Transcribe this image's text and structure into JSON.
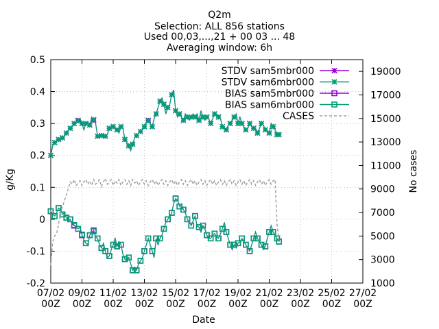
{
  "chart_data": {
    "type": "line",
    "title_lines": [
      "Q2m",
      "Selection: ALL    856 stations",
      "Used 00,03,...,21 + 00 03 ... 48",
      "Averaging window:  6h"
    ],
    "xlabel": "Date",
    "ylabel": "g/Kg",
    "y2label": "No cases",
    "ylim": [
      -0.2,
      0.5
    ],
    "y2lim": [
      1000,
      20000
    ],
    "xlim": [
      0,
      40
    ],
    "grid": true,
    "legend_position": "top-right",
    "x_ticks": [
      {
        "x": 0,
        "line1": "07/02",
        "line2": "00Z"
      },
      {
        "x": 4,
        "line1": "09/02",
        "line2": "00Z"
      },
      {
        "x": 8,
        "line1": "11/02",
        "line2": "00Z"
      },
      {
        "x": 12,
        "line1": "13/02",
        "line2": "00Z"
      },
      {
        "x": 16,
        "line1": "15/02",
        "line2": "00Z"
      },
      {
        "x": 20,
        "line1": "17/02",
        "line2": "00Z"
      },
      {
        "x": 24,
        "line1": "19/02",
        "line2": "00Z"
      },
      {
        "x": 28,
        "line1": "21/02",
        "line2": "00Z"
      },
      {
        "x": 32,
        "line1": "23/02",
        "line2": "00Z"
      },
      {
        "x": 36,
        "line1": "25/02",
        "line2": "00Z"
      },
      {
        "x": 40,
        "line1": "27/02",
        "line2": "00Z"
      }
    ],
    "y_ticks": [
      "-0.2",
      "-0.1",
      "0",
      "0.1",
      "0.2",
      "0.3",
      "0.4",
      "0.5"
    ],
    "y_tick_values": [
      -0.2,
      -0.1,
      0,
      0.1,
      0.2,
      0.3,
      0.4,
      0.5
    ],
    "y2_ticks": [
      "1000",
      "3000",
      "5000",
      "7000",
      "9000",
      "11000",
      "13000",
      "15000",
      "17000",
      "19000"
    ],
    "y2_tick_values": [
      1000,
      3000,
      5000,
      7000,
      9000,
      11000,
      13000,
      15000,
      17000,
      19000
    ],
    "x_step": 0.25,
    "series": [
      {
        "name": "STDV sam5mbr000",
        "color": "#9400d3",
        "marker": "star",
        "axis": "y",
        "values": [
          0.2,
          0.23,
          0.24,
          0.245,
          0.25,
          0.25,
          0.255,
          0.26,
          0.27,
          0.28,
          0.285,
          0.29,
          0.3,
          0.305,
          0.31,
          0.315,
          0.3,
          0.28,
          0.3,
          0.305,
          0.295,
          0.32,
          0.31,
          0.3,
          0.26,
          0.258,
          0.262,
          0.255,
          0.26,
          0.265,
          0.285,
          0.288,
          0.29,
          0.285,
          0.28,
          0.27,
          0.29,
          0.285,
          0.25,
          0.24,
          0.23,
          0.215,
          0.235,
          0.255,
          0.262,
          0.27,
          0.275,
          0.28,
          0.29,
          0.305,
          0.31,
          0.3,
          0.29,
          0.315,
          0.33,
          0.35,
          0.37,
          0.38,
          0.36,
          0.33,
          0.35,
          0.36,
          0.39,
          0.405,
          0.34,
          0.32,
          0.33,
          0.32,
          0.31,
          0.33,
          0.32,
          0.31,
          0.32,
          0.33,
          0.32,
          0.33,
          0.31,
          0.34,
          0.32,
          0.31,
          0.32,
          0.315,
          0.3,
          0.315,
          0.33,
          0.33,
          0.32,
          0.315,
          0.29,
          0.28,
          0.28,
          0.295,
          0.3,
          0.31,
          0.32,
          0.33,
          0.3,
          0.32,
          0.3,
          0.29,
          0.28,
          0.285,
          0.3,
          0.29,
          0.285,
          0.285,
          0.27,
          0.285,
          0.3,
          0.295,
          0.28,
          0.275,
          0.27,
          0.3,
          0.29,
          0.28,
          0.265,
          0.265
        ],
        "x_start": 0
      },
      {
        "name": "STDV sam6mbr000",
        "color": "#009e73",
        "marker": "star",
        "axis": "y",
        "values": [
          0.2,
          0.23,
          0.24,
          0.245,
          0.25,
          0.25,
          0.255,
          0.26,
          0.27,
          0.28,
          0.285,
          0.29,
          0.3,
          0.305,
          0.308,
          0.315,
          0.3,
          0.28,
          0.3,
          0.303,
          0.295,
          0.318,
          0.312,
          0.3,
          0.26,
          0.258,
          0.262,
          0.255,
          0.26,
          0.265,
          0.285,
          0.288,
          0.29,
          0.285,
          0.28,
          0.27,
          0.29,
          0.285,
          0.25,
          0.24,
          0.23,
          0.215,
          0.235,
          0.255,
          0.262,
          0.27,
          0.275,
          0.28,
          0.29,
          0.305,
          0.308,
          0.3,
          0.29,
          0.315,
          0.33,
          0.35,
          0.37,
          0.38,
          0.36,
          0.33,
          0.35,
          0.36,
          0.39,
          0.405,
          0.34,
          0.32,
          0.33,
          0.32,
          0.31,
          0.33,
          0.32,
          0.31,
          0.32,
          0.33,
          0.32,
          0.33,
          0.31,
          0.34,
          0.32,
          0.31,
          0.32,
          0.315,
          0.3,
          0.315,
          0.33,
          0.33,
          0.32,
          0.315,
          0.29,
          0.28,
          0.28,
          0.295,
          0.3,
          0.31,
          0.32,
          0.33,
          0.3,
          0.32,
          0.3,
          0.29,
          0.28,
          0.285,
          0.3,
          0.29,
          0.285,
          0.285,
          0.27,
          0.285,
          0.3,
          0.295,
          0.28,
          0.275,
          0.27,
          0.3,
          0.29,
          0.28,
          0.265,
          0.265
        ],
        "x_start": 0
      },
      {
        "name": "BIAS sam5mbr000",
        "color": "#9400d3",
        "marker": "square",
        "axis": "y",
        "values": [
          0.025,
          0.015,
          0.01,
          0.02,
          0.035,
          0.03,
          0.015,
          0.02,
          0.005,
          -0.005,
          0.0,
          -0.015,
          -0.02,
          -0.025,
          -0.03,
          -0.025,
          -0.05,
          -0.065,
          -0.075,
          -0.08,
          -0.05,
          -0.04,
          -0.035,
          -0.055,
          -0.06,
          -0.08,
          -0.09,
          -0.075,
          -0.1,
          -0.12,
          -0.115,
          -0.095,
          -0.08,
          -0.06,
          -0.085,
          -0.07,
          -0.08,
          -0.11,
          -0.125,
          -0.13,
          -0.12,
          -0.14,
          -0.16,
          -0.15,
          -0.16,
          -0.14,
          -0.13,
          -0.12,
          -0.1,
          -0.08,
          -0.06,
          -0.08,
          -0.1,
          -0.12,
          -0.06,
          -0.08,
          -0.06,
          -0.05,
          -0.03,
          -0.01,
          0.0,
          0.01,
          0.02,
          0.05,
          0.065,
          0.06,
          0.04,
          0.045,
          0.03,
          0.02,
          0.0,
          -0.01,
          -0.02,
          -0.005,
          0.01,
          -0.02,
          -0.025,
          -0.04,
          -0.02,
          -0.03,
          -0.05,
          -0.06,
          -0.06,
          -0.05,
          -0.045,
          -0.055,
          -0.06,
          -0.045,
          -0.03,
          -0.01,
          -0.04,
          -0.06,
          -0.08,
          -0.095,
          -0.08,
          -0.09,
          -0.075,
          -0.07,
          -0.06,
          -0.07,
          -0.08,
          -0.09,
          -0.1,
          -0.08,
          -0.06,
          -0.04,
          -0.06,
          -0.07,
          -0.08,
          -0.095,
          -0.085,
          -0.06,
          -0.04,
          -0.02,
          -0.04,
          -0.05,
          -0.06,
          -0.07
        ],
        "x_start": 0
      },
      {
        "name": "BIAS sam6mbr000",
        "color": "#009e73",
        "marker": "square",
        "axis": "y",
        "values": [
          0.025,
          0.015,
          0.01,
          0.02,
          0.035,
          0.03,
          0.015,
          0.02,
          0.005,
          -0.005,
          0.0,
          -0.012,
          -0.018,
          -0.025,
          -0.03,
          -0.025,
          -0.048,
          -0.065,
          -0.075,
          -0.08,
          -0.05,
          -0.04,
          -0.038,
          -0.055,
          -0.06,
          -0.08,
          -0.09,
          -0.075,
          -0.1,
          -0.12,
          -0.115,
          -0.095,
          -0.08,
          -0.06,
          -0.085,
          -0.07,
          -0.08,
          -0.11,
          -0.125,
          -0.13,
          -0.12,
          -0.14,
          -0.16,
          -0.15,
          -0.16,
          -0.14,
          -0.13,
          -0.12,
          -0.1,
          -0.08,
          -0.06,
          -0.08,
          -0.1,
          -0.12,
          -0.06,
          -0.08,
          -0.06,
          -0.05,
          -0.03,
          -0.01,
          0.0,
          0.01,
          0.02,
          0.05,
          0.065,
          0.06,
          0.04,
          0.045,
          0.03,
          0.02,
          0.0,
          -0.01,
          -0.02,
          -0.005,
          0.01,
          -0.02,
          -0.025,
          -0.04,
          -0.02,
          -0.03,
          -0.05,
          -0.06,
          -0.06,
          -0.05,
          -0.045,
          -0.055,
          -0.06,
          -0.045,
          -0.03,
          -0.01,
          -0.04,
          -0.06,
          -0.08,
          -0.095,
          -0.08,
          -0.09,
          -0.075,
          -0.07,
          -0.06,
          -0.07,
          -0.08,
          -0.09,
          -0.1,
          -0.08,
          -0.06,
          -0.04,
          -0.06,
          -0.07,
          -0.08,
          -0.095,
          -0.085,
          -0.06,
          -0.04,
          -0.02,
          -0.04,
          -0.05,
          -0.06,
          -0.07
        ],
        "x_start": 0
      },
      {
        "name": "CASES",
        "color": "#a0a0a0",
        "marker": "none",
        "dashed": true,
        "axis": "y2",
        "values": [
          2500,
          4500,
          5000,
          5200,
          6000,
          7000,
          7500,
          8000,
          8500,
          9000,
          9600,
          9400,
          9800,
          9300,
          9500,
          9700,
          9300,
          9600,
          9800,
          9400,
          9700,
          9300,
          9800,
          9400,
          9600,
          9800,
          9200,
          9600,
          9900,
          9400,
          9600,
          9800,
          9300,
          9700,
          9500,
          9800,
          9300,
          9600,
          9800,
          9400,
          9700,
          9300,
          9800,
          9500,
          9700,
          9300,
          9600,
          9800,
          9400,
          9700,
          9300,
          9600,
          9800,
          9400,
          9700,
          9300,
          9600,
          9800,
          9400,
          9700,
          9300,
          9600,
          9800,
          9400,
          9700,
          9300,
          9600,
          9800,
          9400,
          9700,
          9300,
          9600,
          9800,
          9400,
          9700,
          9300,
          9600,
          9800,
          9400,
          9700,
          9300,
          9600,
          9800,
          9400,
          9700,
          9300,
          9600,
          9800,
          9400,
          9700,
          9300,
          9600,
          9800,
          9400,
          9700,
          9300,
          9600,
          9800,
          9400,
          9700,
          9300,
          9600,
          9800,
          9400,
          9700,
          9300,
          9600,
          9800,
          9400,
          9700,
          9300,
          9600,
          9800,
          9400,
          9700,
          9800,
          6000,
          4500
        ],
        "x_start": 0
      }
    ]
  }
}
